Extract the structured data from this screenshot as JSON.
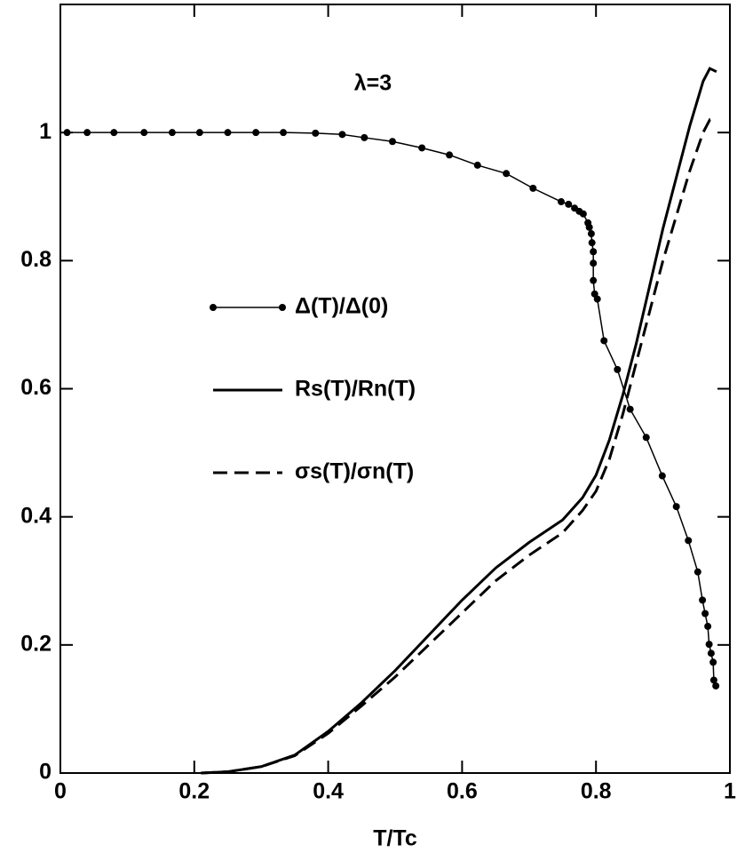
{
  "chart_data": {
    "type": "line",
    "annotation": "λ=3",
    "xlabel": "T/Tc",
    "xlim": [
      0,
      1
    ],
    "ylim": [
      0,
      1.2
    ],
    "xticks": [
      0,
      0.2,
      0.4,
      0.6,
      0.8,
      1
    ],
    "yticks": [
      0,
      0.2,
      0.4,
      0.6,
      0.8,
      1
    ],
    "grid": false,
    "legend": "center left",
    "series": [
      {
        "name": "Δ(T)/Δ(0)",
        "color": "#000000",
        "marker": "circle",
        "line_style": "solid",
        "x": [
          0.01,
          0.04,
          0.08,
          0.125,
          0.167,
          0.208,
          0.25,
          0.292,
          0.333,
          0.381,
          0.421,
          0.454,
          0.496,
          0.54,
          0.581,
          0.623,
          0.666,
          0.706,
          0.748,
          0.759,
          0.768,
          0.775,
          0.781,
          0.788,
          0.79,
          0.793,
          0.794,
          0.796,
          0.796,
          0.796,
          0.798,
          0.802,
          0.812,
          0.832,
          0.851,
          0.875,
          0.899,
          0.92,
          0.938,
          0.952,
          0.959,
          0.963,
          0.967,
          0.969,
          0.972,
          0.975,
          0.976,
          0.979
        ],
        "values": [
          1,
          1,
          1,
          1,
          1,
          1,
          1,
          1,
          1,
          0.999,
          0.997,
          0.992,
          0.986,
          0.976,
          0.965,
          0.949,
          0.936,
          0.913,
          0.892,
          0.888,
          0.882,
          0.877,
          0.873,
          0.859,
          0.852,
          0.842,
          0.828,
          0.814,
          0.796,
          0.769,
          0.748,
          0.74,
          0.675,
          0.63,
          0.568,
          0.524,
          0.464,
          0.416,
          0.363,
          0.314,
          0.27,
          0.249,
          0.229,
          0.201,
          0.187,
          0.173,
          0.145,
          0.136
        ]
      },
      {
        "name": "Rs(T)/Rn(T)",
        "color": "#000000",
        "line_style": "solid",
        "x": [
          0.21,
          0.25,
          0.3,
          0.35,
          0.4,
          0.45,
          0.5,
          0.55,
          0.6,
          0.65,
          0.7,
          0.75,
          0.78,
          0.8,
          0.82,
          0.84,
          0.86,
          0.88,
          0.9,
          0.92,
          0.94,
          0.96,
          0.97,
          0.98
        ],
        "values": [
          0,
          0.002,
          0.01,
          0.028,
          0.065,
          0.11,
          0.16,
          0.215,
          0.27,
          0.32,
          0.36,
          0.395,
          0.43,
          0.465,
          0.52,
          0.59,
          0.67,
          0.76,
          0.85,
          0.93,
          1.01,
          1.08,
          1.1,
          1.095
        ]
      },
      {
        "name": "σs(T)/σn(T)",
        "color": "#000000",
        "line_style": "dashed",
        "x": [
          0.21,
          0.25,
          0.3,
          0.35,
          0.4,
          0.45,
          0.5,
          0.55,
          0.6,
          0.65,
          0.7,
          0.75,
          0.78,
          0.8,
          0.82,
          0.84,
          0.86,
          0.88,
          0.9,
          0.92,
          0.94,
          0.96,
          0.97,
          0.98
        ],
        "values": [
          0,
          0.002,
          0.01,
          0.027,
          0.062,
          0.105,
          0.15,
          0.2,
          0.25,
          0.3,
          0.34,
          0.375,
          0.41,
          0.44,
          0.49,
          0.56,
          0.64,
          0.72,
          0.8,
          0.87,
          0.94,
          1.0,
          1.02,
          1.02
        ]
      }
    ]
  }
}
